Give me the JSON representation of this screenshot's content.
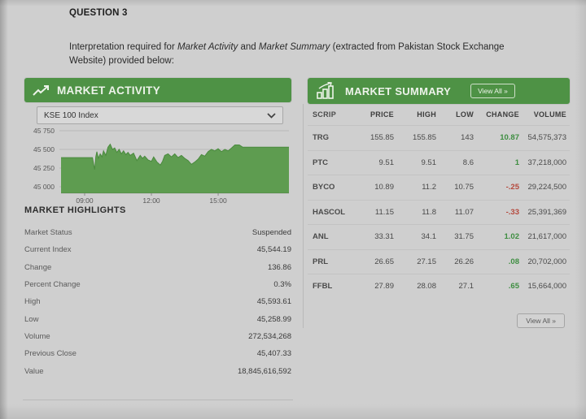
{
  "question": {
    "title": "QUESTION 3",
    "intro": [
      {
        "text": "Interpretation required for ",
        "italic": false
      },
      {
        "text": "Market Activity",
        "italic": true
      },
      {
        "text": " and ",
        "italic": false
      },
      {
        "text": "Market Summary",
        "italic": true
      },
      {
        "text": " (extracted from Pakistan Stock Exchange Website) provided below:",
        "italic": false
      }
    ]
  },
  "market_activity": {
    "title": "MARKET ACTIVITY",
    "index_selector": {
      "value": "KSE 100 Index"
    },
    "highlights_title": "MARKET HIGHLIGHTS",
    "highlights": [
      {
        "label": "Market Status",
        "value": "Suspended"
      },
      {
        "label": "Current Index",
        "value": "45,544.19"
      },
      {
        "label": "Change",
        "value": "136.86"
      },
      {
        "label": "Percent Change",
        "value": "0.3%"
      },
      {
        "label": "High",
        "value": "45,593.61"
      },
      {
        "label": "Low",
        "value": "45,258.99"
      },
      {
        "label": "Volume",
        "value": "272,534,268"
      },
      {
        "label": "Previous Close",
        "value": "45,407.33"
      },
      {
        "label": "Value",
        "value": "18,845,616,592"
      }
    ]
  },
  "market_summary": {
    "title": "MARKET SUMMARY",
    "view_all_label": "View All »",
    "columns": {
      "scrip": "SCRIP",
      "price": "PRICE",
      "high": "HIGH",
      "low": "LOW",
      "change": "CHANGE",
      "volume": "VOLUME"
    },
    "rows": [
      {
        "scrip": "TRG",
        "price": "155.85",
        "high": "155.85",
        "low": "143",
        "change": "10.87",
        "change_dir": "up",
        "volume": "54,575,373"
      },
      {
        "scrip": "PTC",
        "price": "9.51",
        "high": "9.51",
        "low": "8.6",
        "change": "1",
        "change_dir": "up",
        "volume": "37,218,000"
      },
      {
        "scrip": "BYCO",
        "price": "10.89",
        "high": "11.2",
        "low": "10.75",
        "change": "-.25",
        "change_dir": "down",
        "volume": "29,224,500"
      },
      {
        "scrip": "HASCOL",
        "price": "11.15",
        "high": "11.8",
        "low": "11.07",
        "change": "-.33",
        "change_dir": "down",
        "volume": "25,391,369"
      },
      {
        "scrip": "ANL",
        "price": "33.31",
        "high": "34.1",
        "low": "31.75",
        "change": "1.02",
        "change_dir": "up",
        "volume": "21,617,000"
      },
      {
        "scrip": "PRL",
        "price": "26.65",
        "high": "27.15",
        "low": "26.26",
        "change": ".08",
        "change_dir": "up",
        "volume": "20,702,000"
      },
      {
        "scrip": "FFBL",
        "price": "27.89",
        "high": "28.08",
        "low": "27.1",
        "change": ".65",
        "change_dir": "up",
        "volume": "15,664,000"
      }
    ]
  },
  "chart_data": {
    "type": "area",
    "title": "KSE 100 Index intraday",
    "series_name": "KSE 100 Index",
    "x_unit": "time (hours)",
    "xlim": [
      7.94,
      18.18
    ],
    "ylim": [
      44900,
      45800
    ],
    "x_ticks": [
      {
        "hour": 9,
        "label": "09:00"
      },
      {
        "hour": 12,
        "label": "12:00"
      },
      {
        "hour": 15,
        "label": "15:00"
      }
    ],
    "y_ticks": [
      {
        "value": 45750,
        "label": "45 750"
      },
      {
        "value": 45500,
        "label": "45 500"
      },
      {
        "value": 45250,
        "label": "45 250"
      },
      {
        "value": 45000,
        "label": "45 000"
      }
    ],
    "x": [
      7.94,
      9.35,
      9.45,
      9.5,
      9.55,
      9.62,
      9.7,
      9.78,
      9.85,
      9.95,
      10.05,
      10.15,
      10.25,
      10.35,
      10.45,
      10.55,
      10.65,
      10.75,
      10.85,
      10.95,
      11.05,
      11.2,
      11.35,
      11.5,
      11.6,
      11.7,
      11.85,
      12.0,
      12.1,
      12.25,
      12.4,
      12.5,
      12.6,
      12.75,
      12.9,
      13.05,
      13.2,
      13.35,
      13.5,
      13.65,
      13.8,
      13.95,
      14.1,
      14.25,
      14.4,
      14.55,
      14.7,
      14.85,
      15.0,
      15.15,
      15.3,
      15.45,
      15.6,
      15.75,
      15.95,
      16.1,
      18.18
    ],
    "y": [
      45390,
      45390,
      45230,
      45400,
      45470,
      45380,
      45440,
      45400,
      45480,
      45420,
      45530,
      45570,
      45500,
      45520,
      45460,
      45500,
      45440,
      45480,
      45430,
      45460,
      45420,
      45450,
      45350,
      45420,
      45380,
      45410,
      45360,
      45340,
      45400,
      45330,
      45290,
      45340,
      45420,
      45440,
      45400,
      45440,
      45390,
      45420,
      45380,
      45350,
      45300,
      45330,
      45370,
      45430,
      45410,
      45470,
      45500,
      45480,
      45510,
      45470,
      45500,
      45480,
      45520,
      45560,
      45560,
      45530,
      45530
    ],
    "fill_color": "#5e9c50",
    "line_color": "#4a8a3e",
    "grid": true,
    "legend": false
  },
  "colors": {
    "header_green": "#4e9245",
    "change_up": "#3e8e41",
    "change_down": "#b5483c",
    "page_bg": "#cfcfcf"
  }
}
